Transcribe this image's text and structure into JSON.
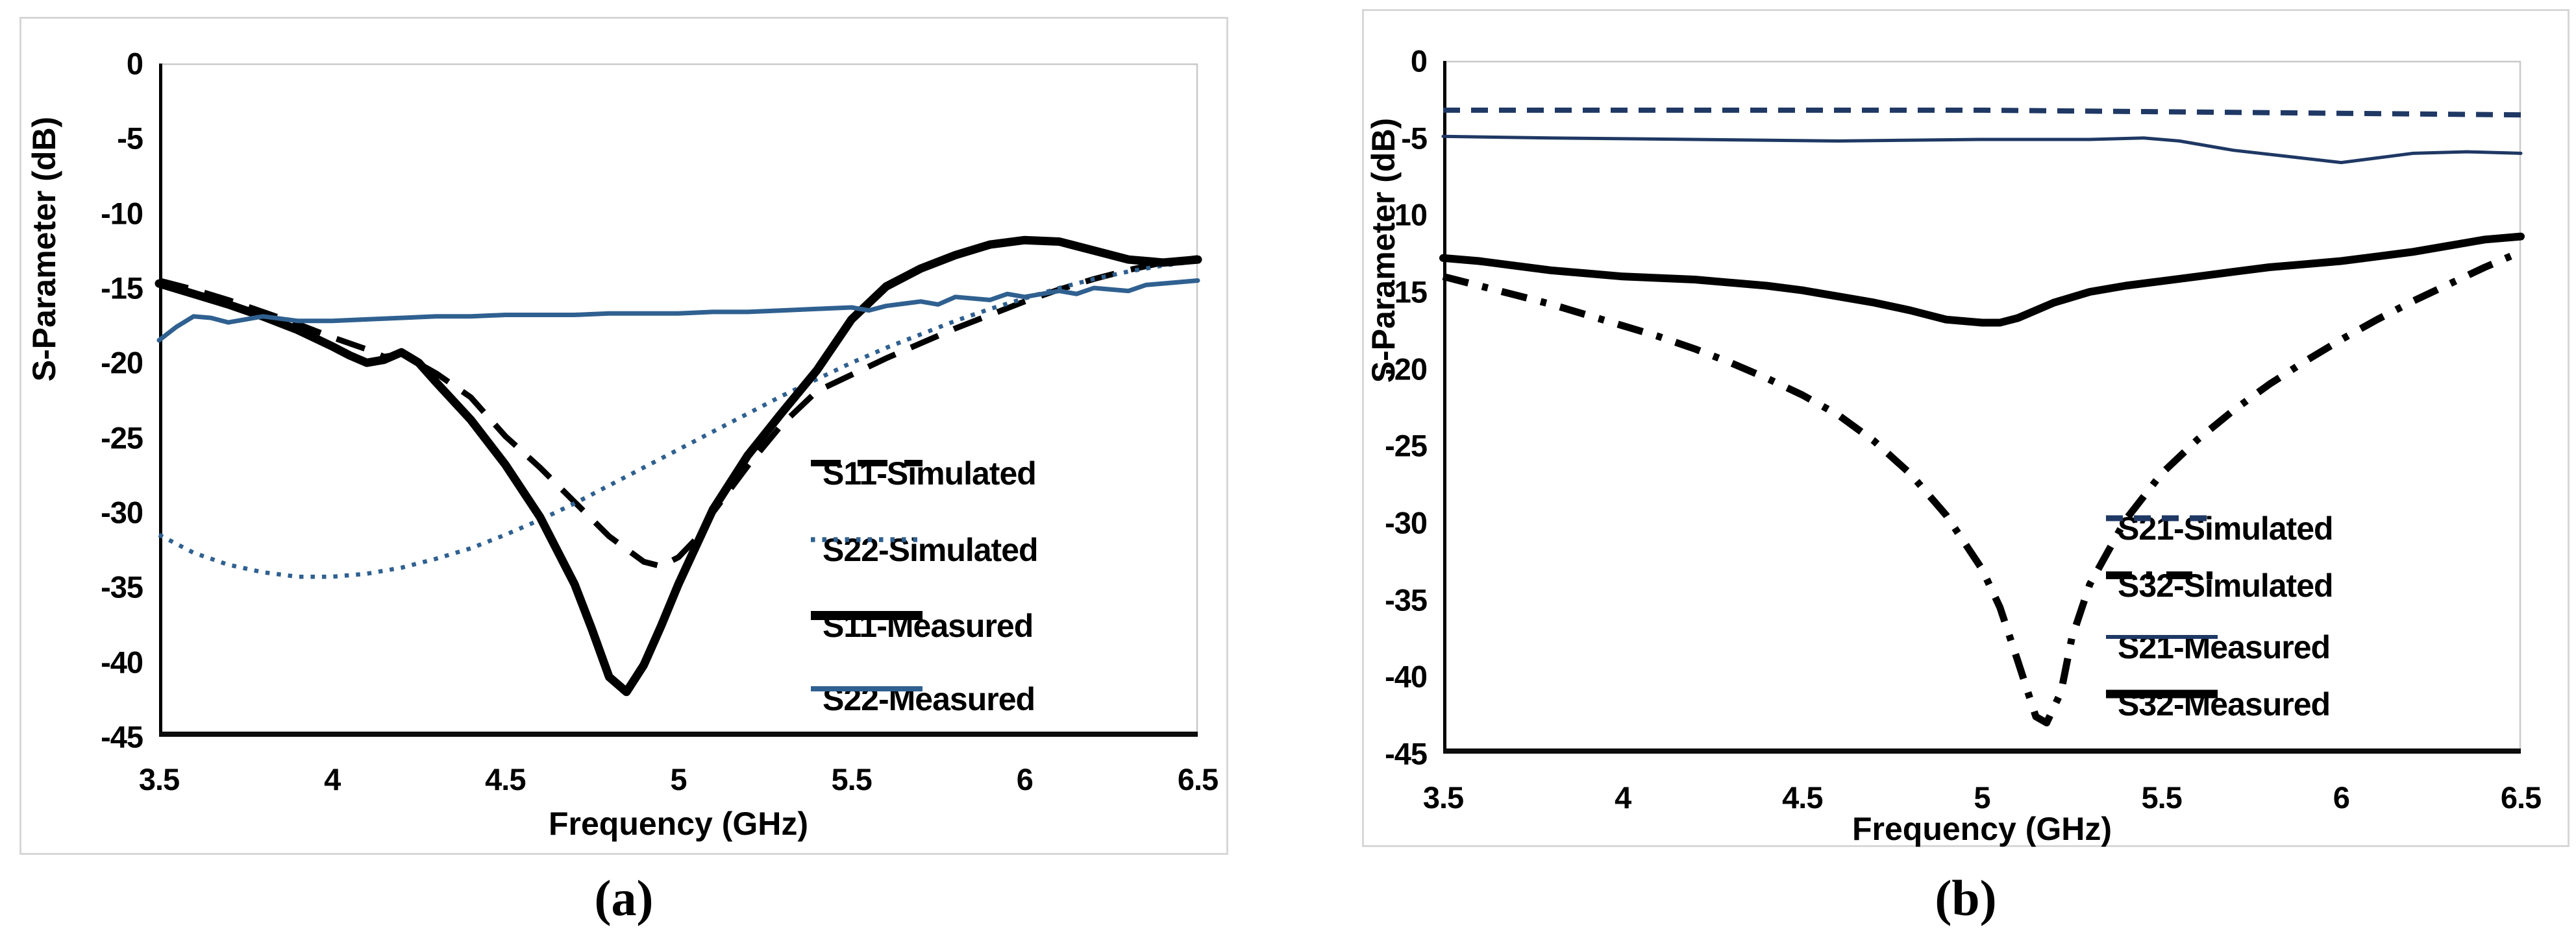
{
  "figure": {
    "caption_a": "(a)",
    "caption_b": "(b)"
  },
  "chart_data": [
    {
      "id": "a",
      "type": "line",
      "title": "",
      "xlabel": "Frequency (GHz)",
      "ylabel": "S-Parameter (dB)",
      "xlim": [
        3.5,
        6.5
      ],
      "ylim": [
        -45,
        0
      ],
      "xticks": [
        "3.5",
        "4",
        "4.5",
        "5",
        "5.5",
        "6",
        "6.5"
      ],
      "yticks": [
        "0",
        "-5",
        "-10",
        "-15",
        "-20",
        "-25",
        "-30",
        "-35",
        "-40",
        "-45"
      ],
      "grid": false,
      "legend_position": "inside lower right",
      "series": [
        {
          "name": "S11-Simulated",
          "color": "#000000",
          "line_style": "longdash",
          "width": 9,
          "points": [
            [
              3.5,
              -14.5
            ],
            [
              3.6,
              -15.1
            ],
            [
              3.7,
              -15.8
            ],
            [
              3.8,
              -16.6
            ],
            [
              3.9,
              -17.4
            ],
            [
              4.0,
              -18.3
            ],
            [
              4.1,
              -19.1
            ],
            [
              4.15,
              -19.6
            ],
            [
              4.2,
              -19.4
            ],
            [
              4.3,
              -20.7
            ],
            [
              4.4,
              -22.3
            ],
            [
              4.5,
              -24.9
            ],
            [
              4.6,
              -27.0
            ],
            [
              4.7,
              -29.3
            ],
            [
              4.8,
              -31.6
            ],
            [
              4.9,
              -33.3
            ],
            [
              4.95,
              -33.6
            ],
            [
              5.0,
              -33.0
            ],
            [
              5.05,
              -31.8
            ],
            [
              5.1,
              -30.0
            ],
            [
              5.2,
              -26.9
            ],
            [
              5.3,
              -24.1
            ],
            [
              5.4,
              -21.9
            ],
            [
              5.5,
              -20.8
            ],
            [
              5.6,
              -19.7
            ],
            [
              5.7,
              -18.7
            ],
            [
              5.8,
              -17.7
            ],
            [
              5.9,
              -16.8
            ],
            [
              6.0,
              -15.9
            ],
            [
              6.1,
              -15.1
            ],
            [
              6.2,
              -14.4
            ],
            [
              6.3,
              -13.8
            ],
            [
              6.4,
              -13.3
            ],
            [
              6.5,
              -13.0
            ]
          ]
        },
        {
          "name": "S22-Simulated",
          "color": "#2F6090",
          "line_style": "dot",
          "width": 6.5,
          "points": [
            [
              3.5,
              -31.5
            ],
            [
              3.6,
              -32.7
            ],
            [
              3.7,
              -33.5
            ],
            [
              3.8,
              -34.0
            ],
            [
              3.9,
              -34.3
            ],
            [
              4.0,
              -34.3
            ],
            [
              4.1,
              -34.1
            ],
            [
              4.2,
              -33.7
            ],
            [
              4.3,
              -33.1
            ],
            [
              4.4,
              -32.4
            ],
            [
              4.5,
              -31.5
            ],
            [
              4.6,
              -30.5
            ],
            [
              4.7,
              -29.4
            ],
            [
              4.8,
              -28.2
            ],
            [
              4.9,
              -27.0
            ],
            [
              5.0,
              -25.8
            ],
            [
              5.1,
              -24.6
            ],
            [
              5.2,
              -23.4
            ],
            [
              5.3,
              -22.2
            ],
            [
              5.4,
              -21.1
            ],
            [
              5.5,
              -20.0
            ],
            [
              5.6,
              -19.0
            ],
            [
              5.7,
              -18.1
            ],
            [
              5.8,
              -17.2
            ],
            [
              5.9,
              -16.4
            ],
            [
              6.0,
              -15.7
            ],
            [
              6.1,
              -15.0
            ],
            [
              6.2,
              -14.4
            ],
            [
              6.3,
              -13.9
            ],
            [
              6.4,
              -13.5
            ],
            [
              6.5,
              -13.2
            ]
          ]
        },
        {
          "name": "S11-Measured",
          "color": "#000000",
          "line_style": "solid",
          "width": 13,
          "points": [
            [
              3.5,
              -14.7
            ],
            [
              3.6,
              -15.4
            ],
            [
              3.7,
              -16.1
            ],
            [
              3.8,
              -16.9
            ],
            [
              3.9,
              -17.8
            ],
            [
              4.0,
              -18.9
            ],
            [
              4.05,
              -19.5
            ],
            [
              4.1,
              -20.0
            ],
            [
              4.15,
              -19.8
            ],
            [
              4.2,
              -19.3
            ],
            [
              4.25,
              -20.0
            ],
            [
              4.3,
              -21.3
            ],
            [
              4.4,
              -23.8
            ],
            [
              4.5,
              -26.8
            ],
            [
              4.6,
              -30.3
            ],
            [
              4.7,
              -34.8
            ],
            [
              4.75,
              -37.8
            ],
            [
              4.8,
              -41.0
            ],
            [
              4.85,
              -42.0
            ],
            [
              4.9,
              -40.2
            ],
            [
              4.95,
              -37.6
            ],
            [
              5.0,
              -34.8
            ],
            [
              5.1,
              -29.8
            ],
            [
              5.2,
              -26.2
            ],
            [
              5.3,
              -23.3
            ],
            [
              5.4,
              -20.5
            ],
            [
              5.5,
              -17.1
            ],
            [
              5.6,
              -14.9
            ],
            [
              5.7,
              -13.7
            ],
            [
              5.8,
              -12.8
            ],
            [
              5.9,
              -12.1
            ],
            [
              6.0,
              -11.8
            ],
            [
              6.1,
              -11.9
            ],
            [
              6.2,
              -12.5
            ],
            [
              6.3,
              -13.1
            ],
            [
              6.4,
              -13.3
            ],
            [
              6.5,
              -13.1
            ]
          ]
        },
        {
          "name": "S22-Measured",
          "color": "#2F6090",
          "line_style": "solid",
          "width": 7,
          "points": [
            [
              3.5,
              -18.5
            ],
            [
              3.55,
              -17.6
            ],
            [
              3.6,
              -16.9
            ],
            [
              3.65,
              -17.0
            ],
            [
              3.7,
              -17.3
            ],
            [
              3.8,
              -16.9
            ],
            [
              3.9,
              -17.2
            ],
            [
              4.0,
              -17.2
            ],
            [
              4.1,
              -17.1
            ],
            [
              4.2,
              -17.0
            ],
            [
              4.3,
              -16.9
            ],
            [
              4.4,
              -16.9
            ],
            [
              4.5,
              -16.8
            ],
            [
              4.6,
              -16.8
            ],
            [
              4.7,
              -16.8
            ],
            [
              4.8,
              -16.7
            ],
            [
              4.9,
              -16.7
            ],
            [
              5.0,
              -16.7
            ],
            [
              5.1,
              -16.6
            ],
            [
              5.2,
              -16.6
            ],
            [
              5.3,
              -16.5
            ],
            [
              5.4,
              -16.4
            ],
            [
              5.5,
              -16.3
            ],
            [
              5.55,
              -16.5
            ],
            [
              5.6,
              -16.2
            ],
            [
              5.7,
              -15.9
            ],
            [
              5.75,
              -16.1
            ],
            [
              5.8,
              -15.6
            ],
            [
              5.9,
              -15.8
            ],
            [
              5.95,
              -15.4
            ],
            [
              6.0,
              -15.6
            ],
            [
              6.1,
              -15.2
            ],
            [
              6.15,
              -15.4
            ],
            [
              6.2,
              -15.0
            ],
            [
              6.3,
              -15.2
            ],
            [
              6.35,
              -14.8
            ],
            [
              6.4,
              -14.7
            ],
            [
              6.5,
              -14.5
            ]
          ]
        }
      ]
    },
    {
      "id": "b",
      "type": "line",
      "title": "",
      "xlabel": "Frequency (GHz)",
      "ylabel": "S-Parameter (dB)",
      "xlim": [
        3.5,
        6.5
      ],
      "ylim": [
        -45,
        0
      ],
      "xticks": [
        "3.5",
        "4",
        "4.5",
        "5",
        "5.5",
        "6",
        "6.5"
      ],
      "yticks": [
        "0",
        "-5",
        "-10",
        "-15",
        "-20",
        "-25",
        "-30",
        "-35",
        "-40",
        "-45"
      ],
      "grid": false,
      "legend_position": "inside lower right",
      "series": [
        {
          "name": "S21-Simulated",
          "color": "#1F3864",
          "line_style": "dash",
          "width": 8,
          "points": [
            [
              3.5,
              -3.2
            ],
            [
              4.0,
              -3.2
            ],
            [
              4.5,
              -3.2
            ],
            [
              5.0,
              -3.2
            ],
            [
              5.5,
              -3.3
            ],
            [
              6.0,
              -3.4
            ],
            [
              6.5,
              -3.5
            ]
          ]
        },
        {
          "name": "S32-Simulated",
          "color": "#000000",
          "line_style": "dashdot",
          "width": 11,
          "points": [
            [
              3.5,
              -14.0
            ],
            [
              3.6,
              -14.6
            ],
            [
              3.7,
              -15.2
            ],
            [
              3.8,
              -15.8
            ],
            [
              3.9,
              -16.5
            ],
            [
              4.0,
              -17.2
            ],
            [
              4.1,
              -17.9
            ],
            [
              4.2,
              -18.7
            ],
            [
              4.3,
              -19.6
            ],
            [
              4.4,
              -20.6
            ],
            [
              4.5,
              -21.7
            ],
            [
              4.6,
              -23.0
            ],
            [
              4.7,
              -24.7
            ],
            [
              4.8,
              -26.8
            ],
            [
              4.9,
              -29.5
            ],
            [
              5.0,
              -33.0
            ],
            [
              5.05,
              -35.5
            ],
            [
              5.1,
              -39.0
            ],
            [
              5.15,
              -42.6
            ],
            [
              5.18,
              -43.0
            ],
            [
              5.22,
              -41.0
            ],
            [
              5.25,
              -37.5
            ],
            [
              5.3,
              -34.0
            ],
            [
              5.4,
              -29.8
            ],
            [
              5.5,
              -26.8
            ],
            [
              5.6,
              -24.6
            ],
            [
              5.7,
              -22.7
            ],
            [
              5.8,
              -21.0
            ],
            [
              5.9,
              -19.5
            ],
            [
              6.0,
              -18.1
            ],
            [
              6.1,
              -16.8
            ],
            [
              6.2,
              -15.6
            ],
            [
              6.3,
              -14.5
            ],
            [
              6.4,
              -13.4
            ],
            [
              6.5,
              -12.4
            ]
          ]
        },
        {
          "name": "S21-Measured",
          "color": "#1F3864",
          "line_style": "solid",
          "width": 5,
          "points": [
            [
              3.5,
              -4.9
            ],
            [
              3.8,
              -5.0
            ],
            [
              4.2,
              -5.1
            ],
            [
              4.6,
              -5.2
            ],
            [
              5.0,
              -5.1
            ],
            [
              5.3,
              -5.1
            ],
            [
              5.45,
              -5.0
            ],
            [
              5.55,
              -5.2
            ],
            [
              5.7,
              -5.8
            ],
            [
              5.85,
              -6.2
            ],
            [
              6.0,
              -6.6
            ],
            [
              6.1,
              -6.3
            ],
            [
              6.2,
              -6.0
            ],
            [
              6.35,
              -5.9
            ],
            [
              6.5,
              -6.0
            ]
          ]
        },
        {
          "name": "S32-Measured",
          "color": "#000000",
          "line_style": "solid",
          "width": 12,
          "points": [
            [
              3.5,
              -12.8
            ],
            [
              3.6,
              -13.0
            ],
            [
              3.7,
              -13.3
            ],
            [
              3.8,
              -13.6
            ],
            [
              3.9,
              -13.8
            ],
            [
              4.0,
              -14.0
            ],
            [
              4.1,
              -14.1
            ],
            [
              4.2,
              -14.2
            ],
            [
              4.3,
              -14.4
            ],
            [
              4.4,
              -14.6
            ],
            [
              4.5,
              -14.9
            ],
            [
              4.6,
              -15.3
            ],
            [
              4.7,
              -15.7
            ],
            [
              4.8,
              -16.2
            ],
            [
              4.9,
              -16.8
            ],
            [
              5.0,
              -17.0
            ],
            [
              5.05,
              -17.0
            ],
            [
              5.1,
              -16.7
            ],
            [
              5.2,
              -15.7
            ],
            [
              5.3,
              -15.0
            ],
            [
              5.4,
              -14.6
            ],
            [
              5.5,
              -14.3
            ],
            [
              5.6,
              -14.0
            ],
            [
              5.7,
              -13.7
            ],
            [
              5.8,
              -13.4
            ],
            [
              5.9,
              -13.2
            ],
            [
              6.0,
              -13.0
            ],
            [
              6.1,
              -12.7
            ],
            [
              6.2,
              -12.4
            ],
            [
              6.3,
              -12.0
            ],
            [
              6.4,
              -11.6
            ],
            [
              6.5,
              -11.4
            ]
          ]
        }
      ]
    }
  ]
}
